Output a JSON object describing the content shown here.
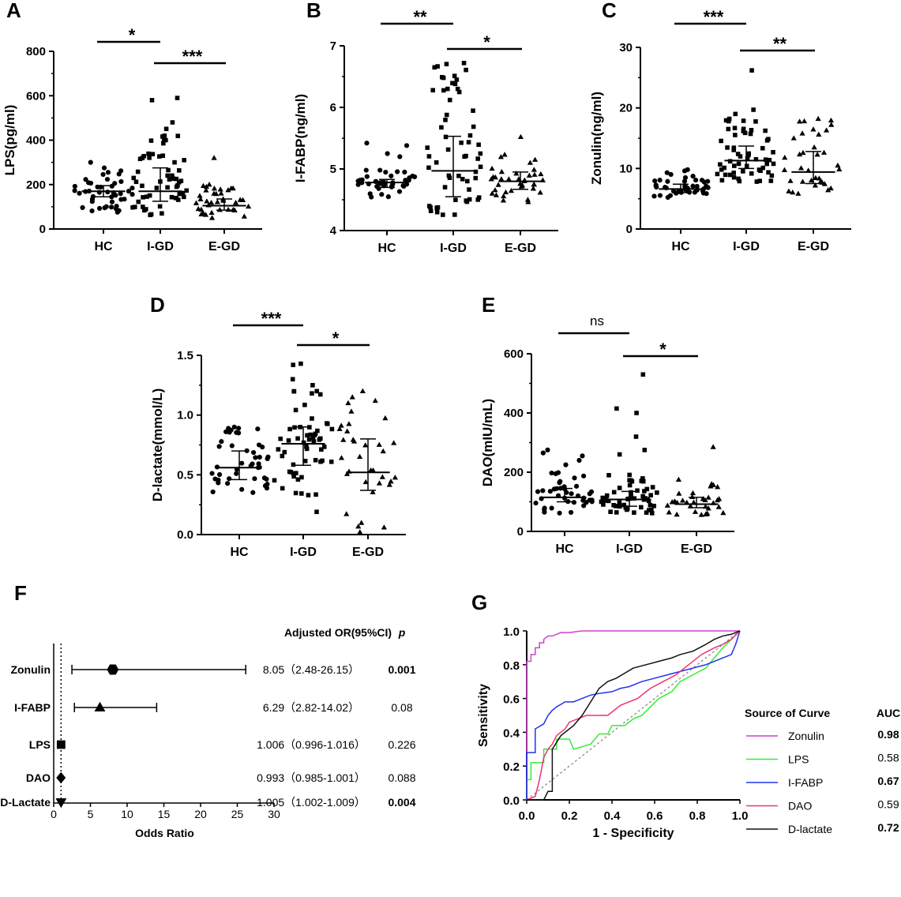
{
  "chart_data": [
    {
      "panel": "A",
      "type": "scatter",
      "ylabel": "LPS(pg/ml)",
      "ylim": [
        0,
        800
      ],
      "yticks": [
        "0",
        "200",
        "400",
        "600",
        "800"
      ],
      "categories": [
        "HC",
        "I-GD",
        "E-GD"
      ],
      "groups": [
        {
          "name": "HC",
          "marker": "circle",
          "median": 170,
          "q1": 145,
          "q3": 195,
          "n": 45,
          "min": 75,
          "max": 300,
          "points": [
            300,
            275,
            262,
            255
          ]
        },
        {
          "name": "I-GD",
          "marker": "square",
          "median": 170,
          "q1": 125,
          "q3": 275,
          "n": 60,
          "min": 40,
          "max": 590,
          "points": [
            590,
            580,
            480,
            420,
            400,
            330,
            320,
            310,
            300
          ]
        },
        {
          "name": "E-GD",
          "marker": "triangle",
          "median": 105,
          "q1": 85,
          "q3": 135,
          "n": 38,
          "min": 45,
          "max": 320,
          "points": [
            320,
            200,
            190,
            175
          ]
        }
      ],
      "significance": [
        {
          "from": "HC",
          "to": "I-GD",
          "label": "*"
        },
        {
          "from": "I-GD",
          "to": "E-GD",
          "label": "***"
        }
      ]
    },
    {
      "panel": "B",
      "type": "scatter",
      "ylabel": "I-FABP(ng/ml)",
      "ylim": [
        4,
        7
      ],
      "yticks": [
        "4",
        "5",
        "6",
        "7"
      ],
      "categories": [
        "HC",
        "I-GD",
        "E-GD"
      ],
      "groups": [
        {
          "name": "HC",
          "marker": "circle",
          "median": 4.78,
          "q1": 4.7,
          "q3": 4.83,
          "n": 45,
          "min": 4.48,
          "max": 5.42,
          "points": [
            5.42,
            5.38,
            5.25,
            5.2
          ]
        },
        {
          "name": "I-GD",
          "marker": "square",
          "median": 4.97,
          "q1": 4.55,
          "q3": 5.53,
          "n": 60,
          "min": 4.25,
          "max": 6.72,
          "points": [
            6.72,
            6.65,
            6.48,
            6.45,
            6.3,
            6.12
          ]
        },
        {
          "name": "E-GD",
          "marker": "triangle",
          "median": 4.8,
          "q1": 4.67,
          "q3": 4.95,
          "n": 38,
          "min": 4.45,
          "max": 5.52,
          "points": [
            5.52,
            5.15,
            5.1
          ]
        }
      ],
      "significance": [
        {
          "from": "HC",
          "to": "I-GD",
          "label": "**"
        },
        {
          "from": "I-GD",
          "to": "E-GD",
          "label": "*"
        }
      ]
    },
    {
      "panel": "C",
      "type": "scatter",
      "ylabel": "Zonulin(ng/ml)",
      "ylim": [
        0,
        30
      ],
      "yticks": [
        "0",
        "10",
        "20",
        "30"
      ],
      "categories": [
        "HC",
        "I-GD",
        "E-GD"
      ],
      "groups": [
        {
          "name": "HC",
          "marker": "circle",
          "median": 6.6,
          "q1": 6.0,
          "q3": 7.4,
          "n": 45,
          "min": 5.2,
          "max": 9.8,
          "points": [
            9.8,
            9.6,
            9.3
          ]
        },
        {
          "name": "I-GD",
          "marker": "square",
          "median": 11.3,
          "q1": 10.0,
          "q3": 13.7,
          "n": 60,
          "min": 7.8,
          "max": 26.2,
          "points": [
            26.2,
            19.7,
            19.0,
            18.2,
            17.8
          ]
        },
        {
          "name": "E-GD",
          "marker": "triangle",
          "median": 9.4,
          "q1": 7.5,
          "q3": 12.8,
          "n": 35,
          "min": 5.8,
          "max": 18.2,
          "points": [
            18.2,
            17.2,
            16.3,
            15.6
          ]
        }
      ],
      "significance": [
        {
          "from": "HC",
          "to": "I-GD",
          "label": "***"
        },
        {
          "from": "I-GD",
          "to": "E-GD",
          "label": "**"
        }
      ]
    },
    {
      "panel": "D",
      "type": "scatter",
      "ylabel": "D-lactate(mmol/L)",
      "ylim": [
        0,
        1.5
      ],
      "yticks": [
        "0.0",
        "0.5",
        "1.0",
        "1.5"
      ],
      "categories": [
        "HC",
        "I-GD",
        "E-GD"
      ],
      "groups": [
        {
          "name": "HC",
          "marker": "circle",
          "median": 0.56,
          "q1": 0.46,
          "q3": 0.7,
          "n": 45,
          "min": 0.35,
          "max": 0.9,
          "points": [
            0.9,
            0.89,
            0.86,
            0.85
          ]
        },
        {
          "name": "I-GD",
          "marker": "square",
          "median": 0.76,
          "q1": 0.58,
          "q3": 0.9,
          "n": 60,
          "min": 0.19,
          "max": 1.43,
          "points": [
            1.43,
            1.42,
            1.3,
            1.25,
            1.2,
            0.19
          ]
        },
        {
          "name": "E-GD",
          "marker": "triangle",
          "median": 0.52,
          "q1": 0.37,
          "q3": 0.8,
          "n": 35,
          "min": 0.02,
          "max": 1.2,
          "points": [
            1.2,
            1.15,
            1.12,
            1.03,
            0.06,
            0.02
          ]
        }
      ],
      "significance": [
        {
          "from": "HC",
          "to": "I-GD",
          "label": "***"
        },
        {
          "from": "I-GD",
          "to": "E-GD",
          "label": "*"
        }
      ]
    },
    {
      "panel": "E",
      "type": "scatter",
      "ylabel": "DAO(mIU/mL)",
      "ylim": [
        0,
        600
      ],
      "yticks": [
        "0",
        "200",
        "400",
        "600"
      ],
      "categories": [
        "HC",
        "I-GD",
        "E-GD"
      ],
      "groups": [
        {
          "name": "HC",
          "marker": "circle",
          "median": 115,
          "q1": 100,
          "q3": 145,
          "n": 45,
          "min": 60,
          "max": 275,
          "points": [
            275,
            265,
            255,
            240,
            225
          ]
        },
        {
          "name": "I-GD",
          "marker": "square",
          "median": 108,
          "q1": 85,
          "q3": 135,
          "n": 60,
          "min": 55,
          "max": 530,
          "points": [
            530,
            415,
            400,
            320,
            275,
            260
          ]
        },
        {
          "name": "E-GD",
          "marker": "triangle",
          "median": 92,
          "q1": 80,
          "q3": 115,
          "n": 35,
          "min": 55,
          "max": 285,
          "points": [
            285,
            175,
            160,
            150
          ]
        }
      ],
      "significance": [
        {
          "from": "HC",
          "to": "I-GD",
          "label": "ns"
        },
        {
          "from": "I-GD",
          "to": "E-GD",
          "label": "*"
        }
      ]
    },
    {
      "panel": "F",
      "type": "forest",
      "xlabel": "Odds Ratio",
      "xlim": [
        0,
        30
      ],
      "xticks": [
        "0",
        "5",
        "10",
        "15",
        "20",
        "25",
        "30"
      ],
      "reference_line": 1,
      "header_or": "Adjusted OR(95%CI)",
      "header_p": "p",
      "rows": [
        {
          "label": "Zonulin",
          "marker": "hexagon",
          "or": 8.05,
          "lo": 2.48,
          "hi": 26.15,
          "or_text": "8.05（2.48-26.15）",
          "p": "0.001",
          "p_bold": true
        },
        {
          "label": "I-FABP",
          "marker": "triangle",
          "or": 6.29,
          "lo": 2.82,
          "hi": 14.02,
          "or_text": "6.29（2.82-14.02）",
          "p": "0.08",
          "p_bold": false
        },
        {
          "label": "LPS",
          "marker": "square",
          "or": 1.006,
          "lo": 0.996,
          "hi": 1.016,
          "or_text": "1.006（0.996-1.016）",
          "p": "0.226",
          "p_bold": false
        },
        {
          "label": "DAO",
          "marker": "diamond",
          "or": 0.993,
          "lo": 0.985,
          "hi": 1.001,
          "or_text": "0.993（0.985-1.001）",
          "p": "0.088",
          "p_bold": false
        },
        {
          "label": "D-Lactate",
          "marker": "triangle-down",
          "or": 1.005,
          "lo": 1.002,
          "hi": 1.009,
          "or_text": "1.005（1.002-1.009）",
          "p": "0.004",
          "p_bold": true
        }
      ]
    },
    {
      "panel": "G",
      "type": "line",
      "title": "",
      "xlabel": "1 - Specificity",
      "ylabel": "Sensitivity",
      "xlim": [
        0,
        1
      ],
      "ylim": [
        0,
        1
      ],
      "xticks": [
        "0.0",
        "0.2",
        "0.4",
        "0.6",
        "0.8",
        "1.0"
      ],
      "yticks": [
        "0.0",
        "0.2",
        "0.4",
        "0.6",
        "0.8",
        "1.0"
      ],
      "legend_title": "Source of Curve",
      "legend_auc_title": "AUC",
      "series": [
        {
          "name": "Zonulin",
          "color": "#cc44cc",
          "auc": "0.98",
          "auc_bold": true,
          "x": [
            0,
            0,
            0.02,
            0.02,
            0.04,
            0.04,
            0.06,
            0.06,
            0.08,
            0.08,
            0.1,
            0.12,
            0.14,
            0.16,
            0.2,
            0.26,
            1.0
          ],
          "y": [
            0,
            0.82,
            0.82,
            0.86,
            0.86,
            0.9,
            0.9,
            0.93,
            0.93,
            0.95,
            0.97,
            0.97,
            0.98,
            0.99,
            0.99,
            1.0,
            1.0
          ]
        },
        {
          "name": "LPS",
          "color": "#33ee33",
          "auc": "0.58",
          "auc_bold": false,
          "x": [
            0,
            0,
            0.02,
            0.02,
            0.08,
            0.08,
            0.14,
            0.14,
            0.2,
            0.22,
            0.3,
            0.34,
            0.38,
            0.4,
            0.46,
            0.5,
            0.54,
            0.58,
            0.62,
            0.68,
            0.72,
            0.78,
            0.84,
            0.88,
            0.92,
            0.96,
            1.0
          ],
          "y": [
            0,
            0.12,
            0.12,
            0.22,
            0.22,
            0.3,
            0.3,
            0.36,
            0.36,
            0.3,
            0.33,
            0.39,
            0.39,
            0.44,
            0.44,
            0.48,
            0.5,
            0.55,
            0.6,
            0.64,
            0.7,
            0.74,
            0.78,
            0.84,
            0.9,
            0.95,
            1.0
          ]
        },
        {
          "name": "I-FABP",
          "color": "#2233ee",
          "auc": "0.67",
          "auc_bold": true,
          "x": [
            0,
            0,
            0.04,
            0.04,
            0.08,
            0.1,
            0.12,
            0.14,
            0.18,
            0.22,
            0.26,
            0.3,
            0.34,
            0.4,
            0.44,
            0.48,
            0.54,
            0.6,
            0.66,
            0.72,
            0.78,
            0.84,
            0.88,
            0.92,
            0.96,
            0.98,
            1.0
          ],
          "y": [
            0,
            0.28,
            0.28,
            0.42,
            0.45,
            0.5,
            0.53,
            0.55,
            0.58,
            0.58,
            0.6,
            0.62,
            0.63,
            0.64,
            0.66,
            0.67,
            0.7,
            0.72,
            0.74,
            0.76,
            0.78,
            0.8,
            0.82,
            0.84,
            0.86,
            0.92,
            1.0
          ]
        },
        {
          "name": "DAO",
          "color": "#ee3377",
          "auc": "0.59",
          "auc_bold": false,
          "x": [
            0,
            0.04,
            0.06,
            0.08,
            0.1,
            0.12,
            0.14,
            0.18,
            0.2,
            0.24,
            0.28,
            0.32,
            0.38,
            0.44,
            0.48,
            0.52,
            0.58,
            0.64,
            0.7,
            0.76,
            0.82,
            0.88,
            0.92,
            0.96,
            1.0
          ],
          "y": [
            0,
            0.02,
            0.12,
            0.25,
            0.3,
            0.33,
            0.38,
            0.42,
            0.46,
            0.48,
            0.5,
            0.5,
            0.5,
            0.56,
            0.58,
            0.6,
            0.66,
            0.7,
            0.74,
            0.8,
            0.86,
            0.9,
            0.92,
            0.95,
            1.0
          ]
        },
        {
          "name": "D-lactate",
          "color": "#111111",
          "auc": "0.72",
          "auc_bold": true,
          "x": [
            0,
            0.08,
            0.1,
            0.12,
            0.12,
            0.16,
            0.18,
            0.22,
            0.26,
            0.3,
            0.34,
            0.38,
            0.42,
            0.46,
            0.5,
            0.56,
            0.62,
            0.68,
            0.72,
            0.78,
            0.84,
            0.88,
            0.92,
            0.96,
            1.0
          ],
          "y": [
            0,
            0.0,
            0.05,
            0.05,
            0.3,
            0.38,
            0.4,
            0.44,
            0.5,
            0.58,
            0.66,
            0.7,
            0.72,
            0.75,
            0.78,
            0.8,
            0.82,
            0.84,
            0.86,
            0.88,
            0.92,
            0.95,
            0.97,
            0.98,
            1.0
          ]
        }
      ]
    }
  ]
}
